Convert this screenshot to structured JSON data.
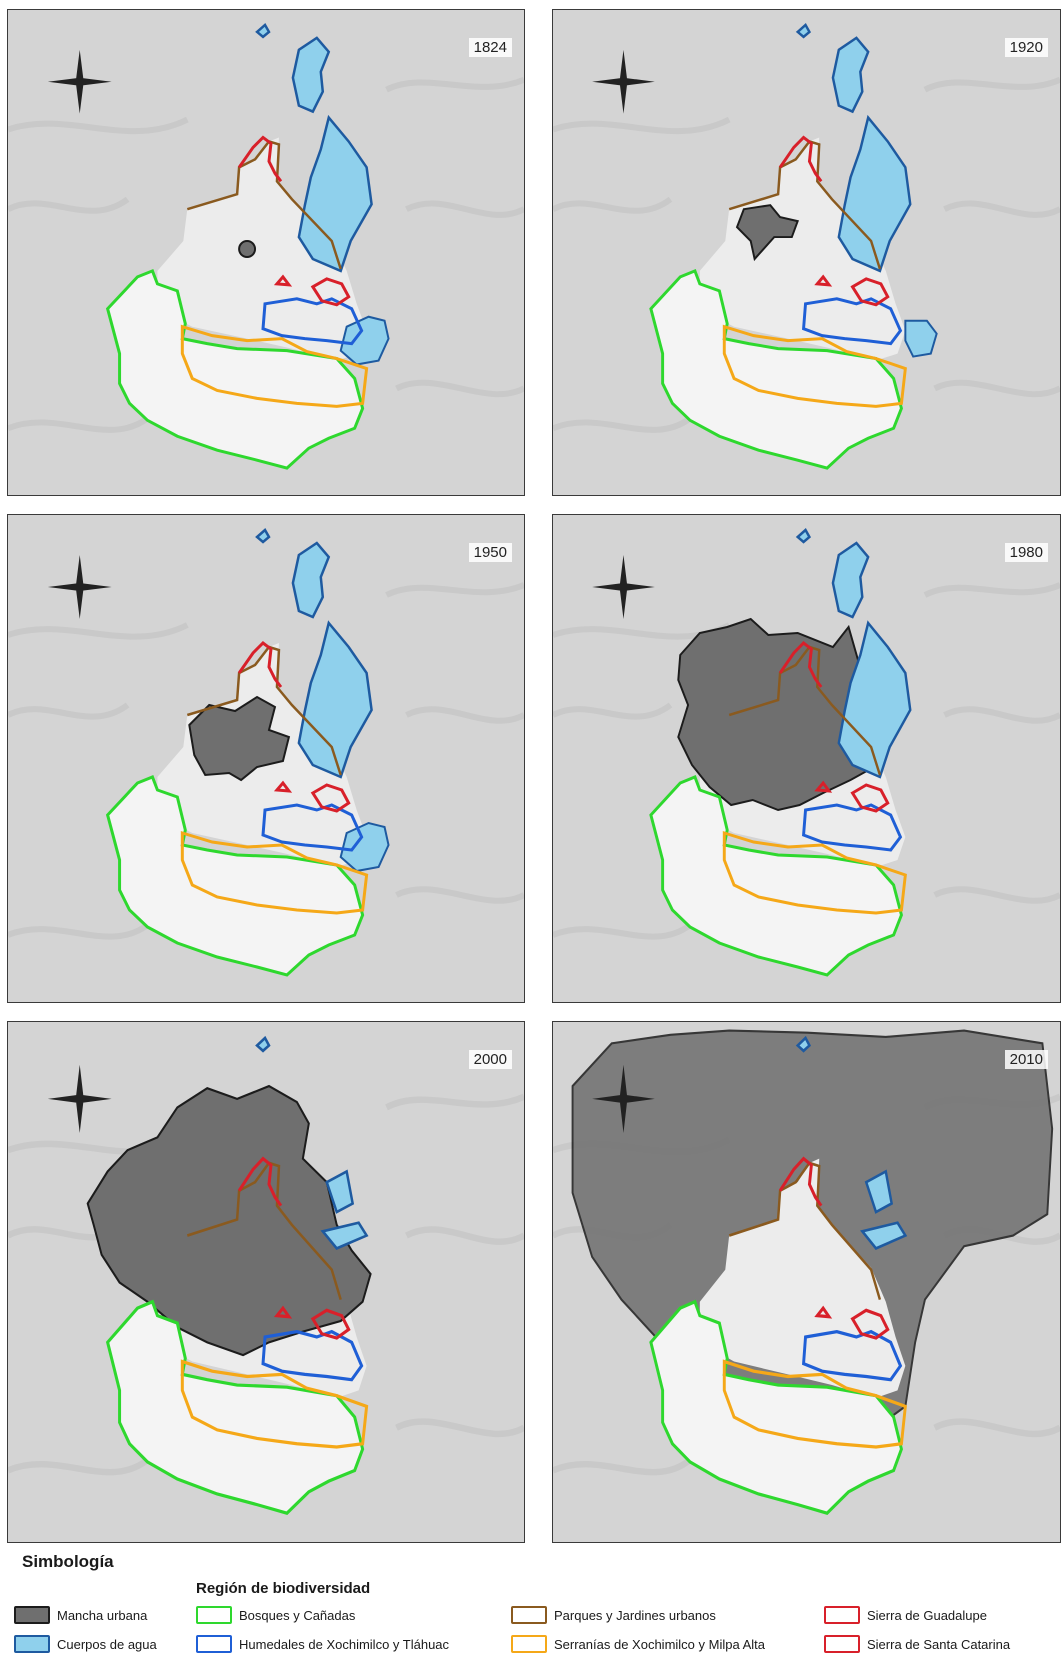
{
  "panels": [
    {
      "year": "1824"
    },
    {
      "year": "1920"
    },
    {
      "year": "1950"
    },
    {
      "year": "1980"
    },
    {
      "year": "2000"
    },
    {
      "year": "2010"
    }
  ],
  "legend": {
    "title": "Simbología",
    "subtitle": "Región de biodiversidad",
    "items": [
      {
        "label": "Mancha urbana",
        "fill": "#6f6f6f",
        "stroke": "#1c1c1c"
      },
      {
        "label": "Cuerpos de agua",
        "fill": "#8fd0ec",
        "stroke": "#1e5aa0"
      },
      {
        "label": "Bosques y Cañadas",
        "fill": "#ffffff",
        "stroke": "#2ed82e"
      },
      {
        "label": "Humedales de Xochimilco y Tláhuac",
        "fill": "#ffffff",
        "stroke": "#1f5fd6"
      },
      {
        "label": "Parques y Jardines urbanos",
        "fill": "#ffffff",
        "stroke": "#8a5a1f"
      },
      {
        "label": "Serranías de Xochimilco y Milpa Alta",
        "fill": "#ffffff",
        "stroke": "#f5a818"
      },
      {
        "label": "Sierra de Guadalupe",
        "fill": "#ffffff",
        "stroke": "#d8202a"
      },
      {
        "label": "Sierra de Santa Catarina",
        "fill": "#ffffff",
        "stroke": "#d8202a"
      }
    ]
  },
  "colors": {
    "terrain": "#d4d4d4",
    "city_zone": "#ececec",
    "urban": "#6f6f6f",
    "water": "#8fd0ec",
    "water_stroke": "#1e5aa0",
    "bosques": "#2ed82e",
    "humedales": "#1f5fd6",
    "parques": "#8a5a1f",
    "serranias": "#f5a818",
    "sierras": "#d8202a"
  },
  "icons": {
    "compass": "compass-rose-icon"
  }
}
